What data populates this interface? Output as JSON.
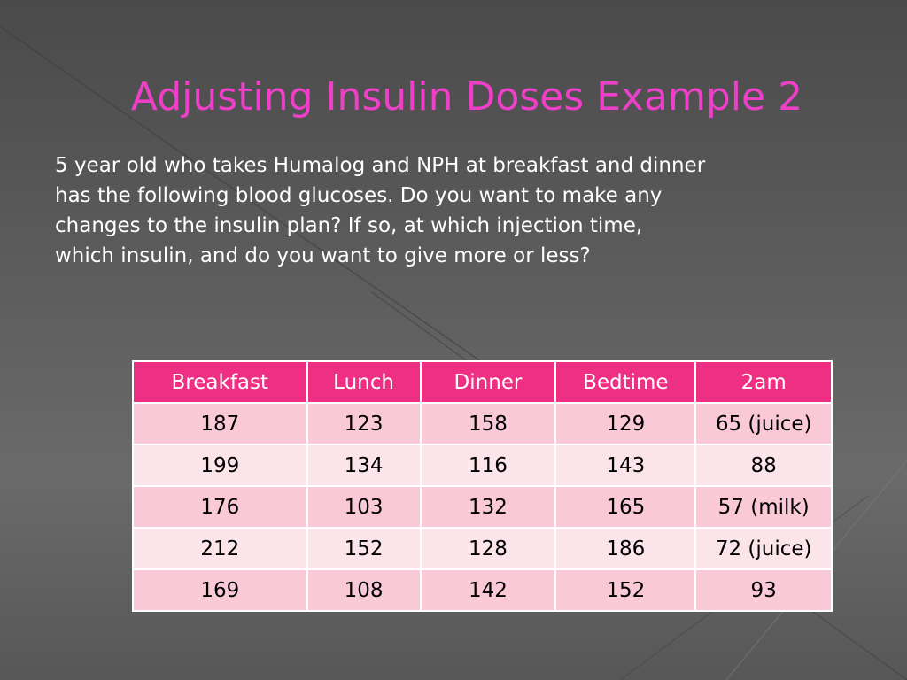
{
  "slide": {
    "title": "Adjusting Insulin Doses Example 2",
    "body": "5 year old who takes Humalog and NPH at breakfast and dinner\nhas the following blood glucoses.  Do you want to make any\nchanges to the  insulin plan? If so,  at  which injection time,\nwhich insulin, and do you want to give more or less?"
  },
  "table": {
    "headers": [
      "Breakfast",
      "Lunch",
      "Dinner",
      "Bedtime",
      "2am"
    ],
    "rows": [
      [
        "187",
        "123",
        "158",
        "129",
        "65 (juice)"
      ],
      [
        "199",
        "134",
        "116",
        "143",
        "88"
      ],
      [
        "176",
        "103",
        "132",
        "165",
        "57 (milk)"
      ],
      [
        "212",
        "152",
        "128",
        "186",
        "72 (juice)"
      ],
      [
        "169",
        "108",
        "142",
        "152",
        "93"
      ]
    ]
  },
  "colors": {
    "title": "#ee3fc8",
    "header_bg": "#ee2f84",
    "row_odd": "#f9c9d7",
    "row_even": "#fbe4ea"
  }
}
